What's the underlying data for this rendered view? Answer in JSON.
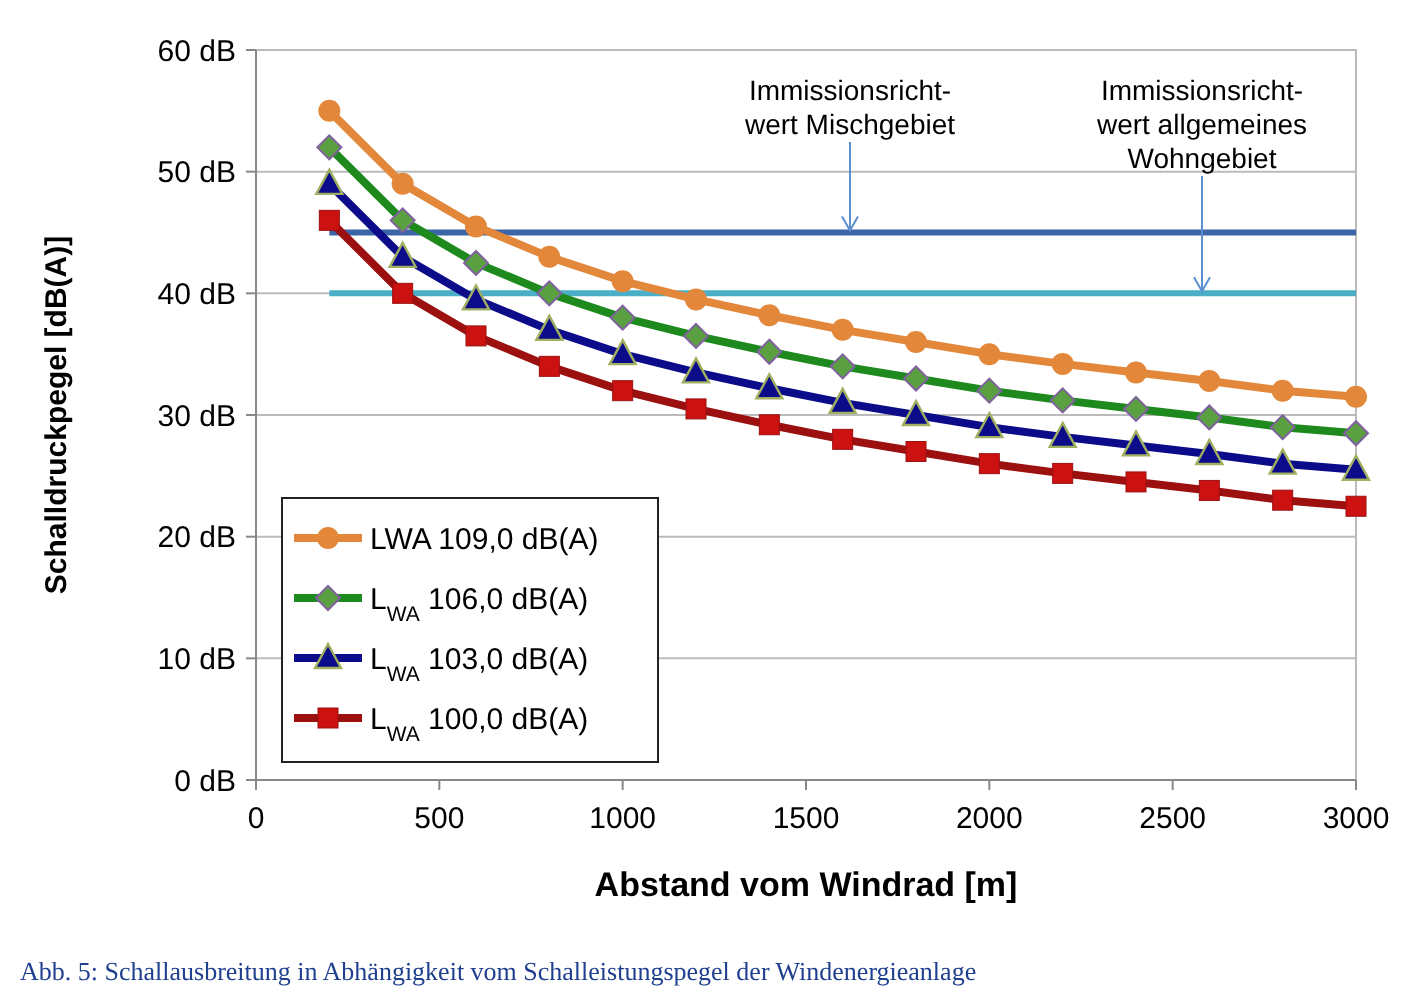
{
  "chart_data": {
    "type": "line",
    "xlabel": "Abstand vom Windrad [m]",
    "ylabel": "Schalldruckpegel [dB(A)]",
    "x": [
      200,
      400,
      600,
      800,
      1000,
      1200,
      1400,
      1600,
      1800,
      2000,
      2200,
      2400,
      2600,
      2800,
      3000
    ],
    "series": [
      {
        "name": "LWA 109,0 dB(A)",
        "color": "#e3883b",
        "marker": "circle",
        "values": [
          55,
          49,
          45.5,
          43,
          41,
          39.5,
          38.2,
          37,
          36,
          35,
          34.2,
          33.5,
          32.8,
          32,
          31.5
        ]
      },
      {
        "name": "L$_{WA}$ 106,0 dB(A)",
        "color": "#1e8a1e",
        "marker": "diamond",
        "values": [
          52,
          46,
          42.5,
          40,
          38,
          36.5,
          35.2,
          34,
          33,
          32,
          31.2,
          30.5,
          29.8,
          29,
          28.5
        ]
      },
      {
        "name": "L$_{WA}$ 103,0 dB(A)",
        "color": "#0c0c8a",
        "marker": "triangle",
        "values": [
          49,
          43,
          39.5,
          37,
          35,
          33.5,
          32.2,
          31,
          30,
          29,
          28.2,
          27.5,
          26.8,
          26,
          25.5
        ]
      },
      {
        "name": "L$_{WA}$ 100,0 dB(A)",
        "color": "#9c1010",
        "marker": "square",
        "values": [
          46,
          40,
          36.5,
          34,
          32,
          30.5,
          29.2,
          28,
          27,
          26,
          25.2,
          24.5,
          23.8,
          23,
          22.5
        ]
      }
    ],
    "xlim": [
      0,
      3000
    ],
    "xticks": [
      0,
      500,
      1000,
      1500,
      2000,
      2500,
      3000
    ],
    "ylim": [
      0,
      60
    ],
    "yticks": [
      {
        "value": 0,
        "label": "0 dB"
      },
      {
        "value": 10,
        "label": "10 dB"
      },
      {
        "value": 20,
        "label": "20 dB"
      },
      {
        "value": 30,
        "label": "30 dB"
      },
      {
        "value": 40,
        "label": "40 dB"
      },
      {
        "value": 50,
        "label": "50 dB"
      },
      {
        "value": 60,
        "label": "60 dB"
      }
    ],
    "grid": "y",
    "legend": "bottom left",
    "ref_lines": [
      {
        "axis": "y",
        "value": 45,
        "color": "#3c64a8"
      },
      {
        "axis": "y",
        "value": 40,
        "color": "#4aaec6"
      }
    ],
    "annotations": [
      {
        "text": "Immissionsricht-\nwert Mischgebiet",
        "x": 1620,
        "y": 45
      },
      {
        "text": "Immissionsricht-\nwert allgemeines\nWohngebiet",
        "x": 2580,
        "y": 40
      },
      "Abb. 5: Schallausbreitung in Abhängigkeit vom Schalleistungspegel der Windenergieanlage"
    ]
  }
}
